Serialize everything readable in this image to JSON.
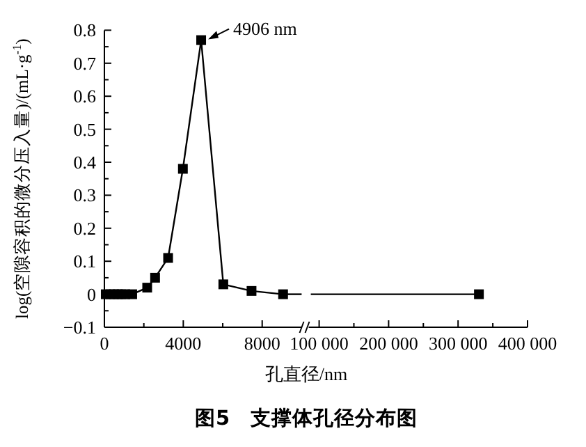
{
  "chart_data": [
    {
      "type": "line",
      "title": "图5　支撑体孔径分布图",
      "xlabel": "孔直径/nm",
      "ylabel": "log(空隙容积的微分压入量)/(mL·g$^{-1}$)",
      "series": [
        {
          "color": "#000000",
          "x": [
            70,
            300,
            490,
            680,
            870,
            1060,
            1410,
            2170,
            2570,
            3230,
            3980,
            4906,
            6030,
            7460,
            9060
          ],
          "values": [
            0,
            0,
            0,
            0,
            0,
            0,
            0,
            0.02,
            0.05,
            0.11,
            0.38,
            0.77,
            0.03,
            0.01,
            0
          ]
        }
      ],
      "xlim": [
        0,
        10000
      ],
      "xticks": [
        0,
        4000,
        8000
      ],
      "ylim": [
        -0.1,
        0.8
      ],
      "yticks": [
        -0.1,
        0,
        0.1,
        0.2,
        0.3,
        0.4,
        0.5,
        0.6,
        0.7,
        0.8
      ],
      "marker": "square",
      "line_style": "solid",
      "grid": false,
      "annotations": [
        {
          "text": "4906 nm",
          "x": 4906,
          "y": 0.77
        }
      ]
    },
    {
      "type": "line",
      "series": [
        {
          "color": "#000000",
          "x": [
            88000,
            330000
          ],
          "values": [
            0,
            0
          ],
          "marker": "none"
        },
        {
          "color": "#000000",
          "x": [
            330000
          ],
          "values": [
            0
          ]
        }
      ],
      "xlim": [
        85000,
        400000
      ],
      "xticks": [
        {
          "value": 100000,
          "label": "100 000"
        },
        {
          "value": 200000,
          "label": "200 000"
        },
        {
          "value": 300000,
          "label": "300 000"
        },
        {
          "value": 400000,
          "label": "400 000"
        }
      ],
      "ylim": [
        -0.1,
        0.8
      ],
      "tick_labels": "x",
      "marker": "square",
      "line_style": "solid",
      "grid": false
    }
  ]
}
